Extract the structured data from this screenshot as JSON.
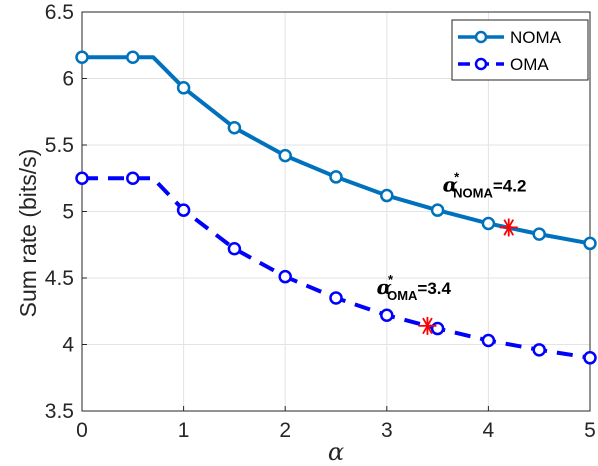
{
  "chart_data": {
    "type": "line",
    "xlabel": "α",
    "ylabel": "Sum rate (bits/s)",
    "xlim": [
      0,
      5
    ],
    "ylim": [
      3.5,
      6.5
    ],
    "xticks": [
      "0",
      "1",
      "2",
      "3",
      "4",
      "5"
    ],
    "yticks": [
      "3.5",
      "4",
      "4.5",
      "5",
      "5.5",
      "6",
      "6.5"
    ],
    "grid": true,
    "legend_position": "top-right",
    "series": [
      {
        "name": "NOMA",
        "style": "solid",
        "color": "#0072BD",
        "line": [
          [
            0,
            6.16
          ],
          [
            0.5,
            6.16
          ],
          [
            0.7,
            6.16
          ],
          [
            1,
            5.93
          ],
          [
            1.5,
            5.63
          ],
          [
            2,
            5.42
          ],
          [
            2.5,
            5.26
          ],
          [
            3,
            5.12
          ],
          [
            3.5,
            5.01
          ],
          [
            4,
            4.91
          ],
          [
            4.5,
            4.83
          ],
          [
            5,
            4.76
          ]
        ],
        "markers": [
          [
            0,
            6.16
          ],
          [
            0.5,
            6.16
          ],
          [
            1,
            5.93
          ],
          [
            1.5,
            5.63
          ],
          [
            2,
            5.42
          ],
          [
            2.5,
            5.26
          ],
          [
            3,
            5.12
          ],
          [
            3.5,
            5.01
          ],
          [
            4,
            4.91
          ],
          [
            4.5,
            4.83
          ],
          [
            5,
            4.76
          ]
        ]
      },
      {
        "name": "OMA",
        "style": "dashed",
        "color": "#0000FF",
        "line": [
          [
            0,
            5.25
          ],
          [
            0.5,
            5.25
          ],
          [
            0.7,
            5.25
          ],
          [
            1,
            5.01
          ],
          [
            1.5,
            4.72
          ],
          [
            2,
            4.51
          ],
          [
            2.5,
            4.35
          ],
          [
            3,
            4.22
          ],
          [
            3.5,
            4.12
          ],
          [
            4,
            4.03
          ],
          [
            4.5,
            3.96
          ],
          [
            5,
            3.9
          ]
        ],
        "markers": [
          [
            0,
            5.25
          ],
          [
            0.5,
            5.25
          ],
          [
            1,
            5.01
          ],
          [
            1.5,
            4.72
          ],
          [
            2,
            4.51
          ],
          [
            2.5,
            4.35
          ],
          [
            3,
            4.22
          ],
          [
            3.5,
            4.12
          ],
          [
            4,
            4.03
          ],
          [
            4.5,
            3.96
          ],
          [
            5,
            3.9
          ]
        ]
      }
    ],
    "optimal_points": [
      {
        "x": 4.2,
        "y": 4.88,
        "color": "#FF0000"
      },
      {
        "x": 3.4,
        "y": 4.14,
        "color": "#FF0000"
      }
    ],
    "annotations": [
      {
        "symbol": "α",
        "sup": "*",
        "sub": "NOMA",
        "text": "=4.2",
        "x": 3.55,
        "y": 5.15
      },
      {
        "symbol": "α",
        "sup": "*",
        "sub": "OMA",
        "text": "=3.4",
        "x": 2.9,
        "y": 4.38
      }
    ]
  }
}
